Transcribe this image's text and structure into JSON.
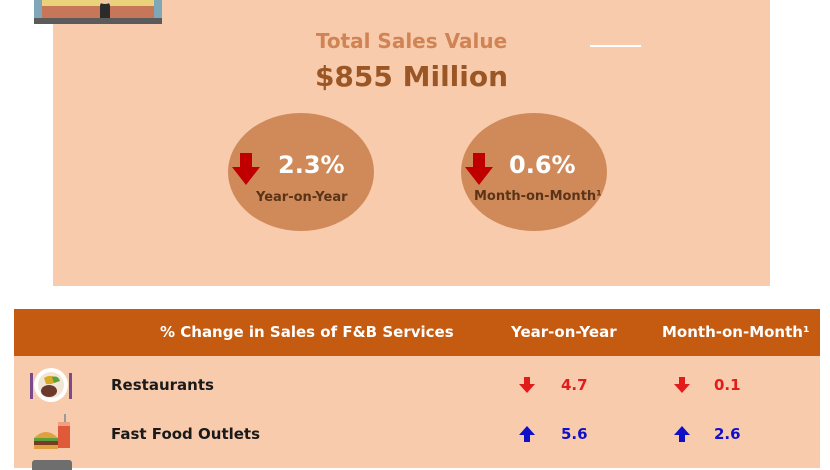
{
  "summary": {
    "total_label": "Total Sales Value",
    "total_value": "$855 Million",
    "yoy": {
      "value": "2.3%",
      "label": "Year-on-Year",
      "direction": "down"
    },
    "mom": {
      "value": "0.6%",
      "label": "Month-on-Month¹",
      "direction": "down"
    }
  },
  "table": {
    "headers": {
      "category": "% Change in Sales of F&B Services",
      "yoy": "Year-on-Year",
      "mom": "Month-on-Month¹"
    },
    "rows": [
      {
        "name": "Restaurants",
        "icon": "restaurant-plate-icon",
        "yoy": "4.7",
        "yoy_dir": "down",
        "mom": "0.1",
        "mom_dir": "down"
      },
      {
        "name": "Fast Food Outlets",
        "icon": "fast-food-icon",
        "yoy": "5.6",
        "yoy_dir": "up",
        "mom": "2.6",
        "mom_dir": "up"
      }
    ]
  },
  "colors": {
    "panel_bg": "#f8cbad",
    "header_bg": "#c55a11",
    "bubble_bg": "#d08a5a",
    "negative": "#e21b1b",
    "positive": "#1010c8"
  }
}
